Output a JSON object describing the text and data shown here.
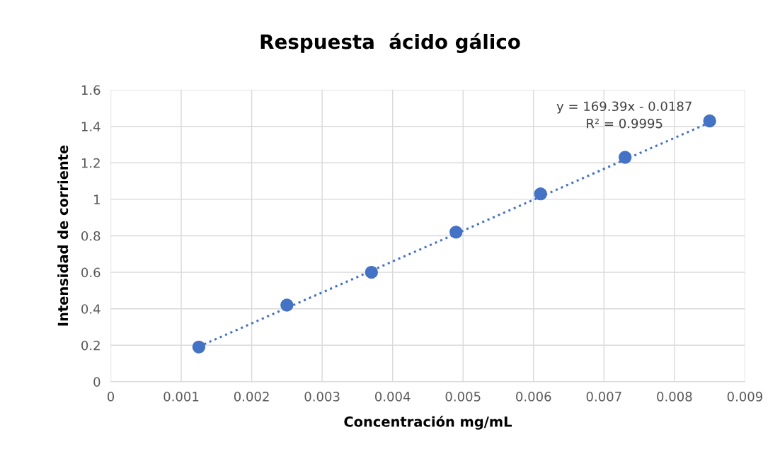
{
  "chart_data": {
    "type": "scatter",
    "title": "Respuesta  ácido gálico",
    "xlabel": "Concentración mg/mL",
    "ylabel": "Intensidad de corriente",
    "series": [
      {
        "color": "#4472c4",
        "x": [
          0.00125,
          0.0025,
          0.0037,
          0.0049,
          0.0061,
          0.0073,
          0.0085
        ],
        "values": [
          0.19,
          0.42,
          0.6,
          0.82,
          1.03,
          1.23,
          1.43
        ],
        "marker": "circle"
      },
      {
        "type": "line",
        "color": "#4472c4",
        "x": [
          0.00125,
          0.0085
        ],
        "values": [
          0.193,
          1.421
        ],
        "line_style": "dotted"
      }
    ],
    "annotations": [
      "y = 169.39x - 0.0187\nR² = 0.9995"
    ],
    "xlim": [
      0,
      0.009
    ],
    "xticks": [
      0,
      0.001,
      0.002,
      0.003,
      0.004,
      0.005,
      0.006,
      0.007,
      0.008,
      0.009
    ],
    "ylim": [
      0,
      1.6
    ],
    "yticks": [
      0,
      0.2,
      0.4,
      0.6,
      0.8,
      1,
      1.2,
      1.4,
      1.6
    ],
    "grid": true,
    "legend": false
  }
}
